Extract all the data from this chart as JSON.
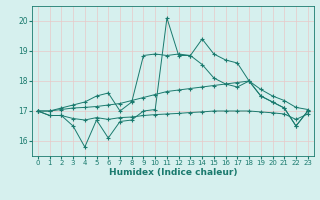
{
  "x": [
    0,
    1,
    2,
    3,
    4,
    5,
    6,
    7,
    8,
    9,
    10,
    11,
    12,
    13,
    14,
    15,
    16,
    17,
    18,
    19,
    20,
    21,
    22,
    23
  ],
  "y_zigzag": [
    17.0,
    16.85,
    16.85,
    16.5,
    15.8,
    16.7,
    16.1,
    16.65,
    16.7,
    17.0,
    17.05,
    20.1,
    18.85,
    18.85,
    19.4,
    18.9,
    18.7,
    18.6,
    18.0,
    17.5,
    17.3,
    17.1,
    16.5,
    17.0
  ],
  "y_upper": [
    17.0,
    17.0,
    17.1,
    17.2,
    17.3,
    17.5,
    17.6,
    17.0,
    17.3,
    18.85,
    18.9,
    18.85,
    18.9,
    18.85,
    18.55,
    18.1,
    17.9,
    17.8,
    18.0,
    17.5,
    17.3,
    17.1,
    16.5,
    17.0
  ],
  "y_smooth": [
    17.0,
    17.0,
    17.05,
    17.1,
    17.12,
    17.15,
    17.2,
    17.25,
    17.35,
    17.45,
    17.55,
    17.65,
    17.7,
    17.75,
    17.8,
    17.85,
    17.9,
    17.95,
    18.0,
    17.72,
    17.5,
    17.35,
    17.12,
    17.05
  ],
  "y_flat": [
    17.0,
    16.85,
    16.85,
    16.75,
    16.7,
    16.78,
    16.72,
    16.78,
    16.8,
    16.85,
    16.88,
    16.9,
    16.92,
    16.95,
    16.97,
    17.0,
    17.0,
    17.0,
    17.0,
    16.97,
    16.94,
    16.9,
    16.72,
    16.9
  ],
  "color": "#1a7a6e",
  "bg_color": "#d6f0ee",
  "grid_color": "#e8c8c8",
  "xlabel": "Humidex (Indice chaleur)",
  "ylim": [
    15.5,
    20.5
  ],
  "xlim": [
    -0.5,
    23.5
  ],
  "yticks": [
    16,
    17,
    18,
    19,
    20
  ],
  "xticks": [
    0,
    1,
    2,
    3,
    4,
    5,
    6,
    7,
    8,
    9,
    10,
    11,
    12,
    13,
    14,
    15,
    16,
    17,
    18,
    19,
    20,
    21,
    22,
    23
  ]
}
